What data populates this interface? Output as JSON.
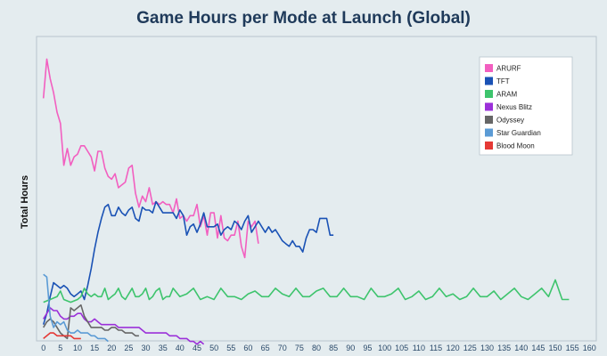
{
  "chart_data": {
    "type": "line",
    "title": "Game Hours per Mode at Launch (Global)",
    "xlabel": "",
    "ylabel": "Total Hours",
    "xlim": [
      -2,
      162
    ],
    "ylim": [
      0,
      100
    ],
    "xticks": [
      0,
      5,
      10,
      15,
      20,
      25,
      30,
      35,
      40,
      45,
      50,
      55,
      60,
      65,
      70,
      75,
      80,
      85,
      90,
      95,
      100,
      105,
      110,
      115,
      120,
      125,
      130,
      135,
      140,
      145,
      150,
      155,
      160
    ],
    "yticks_visible": false,
    "grid": false,
    "legend": "top-right",
    "series": [
      {
        "name": "ARURF",
        "color": "#f25fc0",
        "x": [
          0,
          1,
          2,
          3,
          4,
          5,
          6,
          7,
          8,
          9,
          10,
          11,
          12,
          13,
          14,
          15,
          16,
          17,
          18,
          19,
          20,
          21,
          22,
          23,
          24,
          25,
          26,
          27,
          28,
          29,
          30,
          31,
          32,
          33,
          34,
          35,
          36,
          37,
          38,
          39,
          40,
          41,
          42,
          43,
          44,
          45,
          46,
          47,
          48,
          49,
          50,
          51,
          52,
          53,
          54,
          55,
          56,
          57,
          58,
          59,
          60,
          61,
          62,
          63
        ],
        "y": [
          83,
          97,
          90,
          85,
          78,
          74,
          59,
          65,
          59,
          62,
          63,
          66,
          66,
          64,
          62,
          57,
          64,
          64,
          58,
          55,
          54,
          56,
          51,
          52,
          53,
          58,
          59,
          49,
          44,
          48,
          46,
          51,
          45,
          46,
          45,
          46,
          45,
          45,
          42,
          47,
          40,
          41,
          39,
          41,
          41,
          45,
          37,
          41,
          34,
          42,
          42,
          33,
          41,
          33,
          32,
          34,
          34,
          39,
          30,
          26,
          39,
          37,
          39,
          31
        ]
      },
      {
        "name": "TFT",
        "color": "#1a52b5",
        "x": [
          0,
          1,
          2,
          3,
          4,
          5,
          6,
          7,
          8,
          9,
          10,
          11,
          12,
          13,
          14,
          15,
          16,
          17,
          18,
          19,
          20,
          21,
          22,
          23,
          24,
          25,
          26,
          27,
          28,
          29,
          30,
          31,
          32,
          33,
          34,
          35,
          36,
          37,
          38,
          39,
          40,
          41,
          42,
          43,
          44,
          45,
          46,
          47,
          48,
          49,
          50,
          51,
          52,
          53,
          54,
          55,
          56,
          57,
          58,
          59,
          60,
          61,
          62,
          63,
          64,
          65,
          66,
          67,
          68,
          69,
          70,
          71,
          72,
          73,
          74,
          75,
          76,
          77,
          78,
          79,
          80,
          81,
          82,
          83,
          84,
          85
        ],
        "y": [
          2,
          6,
          12,
          17,
          16,
          15,
          16,
          15,
          13,
          12,
          13,
          14,
          11,
          16,
          22,
          29,
          35,
          40,
          44,
          45,
          41,
          41,
          44,
          42,
          41,
          43,
          44,
          40,
          39,
          44,
          43,
          43,
          42,
          46,
          44,
          42,
          42,
          42,
          42,
          40,
          43,
          41,
          34,
          37,
          38,
          35,
          38,
          42,
          37,
          37,
          37,
          38,
          34,
          36,
          37,
          36,
          39,
          38,
          36,
          39,
          41,
          35,
          37,
          39,
          37,
          35,
          37,
          35,
          36,
          34,
          32,
          31,
          30,
          32,
          30,
          30,
          28,
          33,
          36,
          36,
          35,
          40,
          40,
          40,
          34,
          34
        ]
      },
      {
        "name": "ARAM",
        "color": "#3ec46d",
        "x": [
          0,
          2,
          4,
          5,
          6,
          8,
          10,
          11,
          12,
          13,
          14,
          15,
          16,
          17,
          18,
          19,
          20,
          21,
          22,
          23,
          24,
          25,
          26,
          27,
          28,
          29,
          30,
          31,
          32,
          33,
          34,
          35,
          36,
          37,
          38,
          40,
          42,
          44,
          46,
          48,
          50,
          52,
          54,
          56,
          58,
          60,
          62,
          64,
          66,
          68,
          70,
          72,
          74,
          76,
          78,
          80,
          82,
          84,
          86,
          88,
          90,
          92,
          94,
          96,
          98,
          100,
          102,
          104,
          106,
          108,
          110,
          112,
          114,
          116,
          118,
          120,
          122,
          124,
          126,
          128,
          130,
          132,
          134,
          136,
          138,
          140,
          142,
          144,
          146,
          148,
          150,
          152,
          154
        ],
        "y": [
          10,
          11,
          12,
          14,
          11,
          10,
          11,
          12,
          15,
          13,
          12,
          13,
          12,
          12,
          15,
          11,
          12,
          13,
          15,
          12,
          11,
          13,
          15,
          12,
          12,
          13,
          15,
          11,
          12,
          14,
          15,
          11,
          12,
          12,
          15,
          12,
          13,
          15,
          11,
          12,
          11,
          15,
          12,
          12,
          11,
          13,
          14,
          12,
          12,
          15,
          13,
          12,
          15,
          12,
          12,
          14,
          15,
          12,
          12,
          15,
          12,
          12,
          11,
          15,
          12,
          12,
          13,
          15,
          11,
          12,
          14,
          11,
          12,
          15,
          12,
          13,
          11,
          12,
          15,
          12,
          12,
          14,
          11,
          13,
          15,
          12,
          11,
          13,
          15,
          12,
          18,
          11,
          11
        ]
      },
      {
        "name": "Nexus Blitz",
        "color": "#9b30d9",
        "x": [
          0,
          1,
          2,
          3,
          4,
          5,
          6,
          7,
          8,
          9,
          10,
          11,
          12,
          13,
          14,
          15,
          16,
          17,
          18,
          19,
          20,
          21,
          22,
          23,
          24,
          25,
          26,
          27,
          28,
          29,
          30,
          31,
          32,
          33,
          34,
          35,
          36,
          37,
          38,
          39,
          40,
          41,
          42,
          43,
          44,
          45,
          46,
          47
        ],
        "y": [
          4,
          6,
          8,
          7,
          7,
          5,
          4,
          4,
          5,
          5,
          6,
          6,
          4,
          3,
          3,
          4,
          3,
          2,
          2,
          2,
          2,
          2,
          1,
          1,
          1,
          1,
          1,
          1,
          1,
          0,
          -1,
          -1,
          -1,
          -1,
          -1,
          -1,
          -1,
          -2,
          -2,
          -2,
          -3,
          -3,
          -3,
          -4,
          -4,
          -5,
          -4,
          -5
        ]
      },
      {
        "name": "Odyssey",
        "color": "#666666",
        "x": [
          0,
          1,
          2,
          3,
          4,
          5,
          6,
          7,
          8,
          9,
          10,
          11,
          12,
          13,
          14,
          15,
          16,
          17,
          18,
          19,
          20,
          21,
          22,
          23,
          24,
          25,
          26,
          27,
          28
        ],
        "y": [
          1,
          3,
          4,
          3,
          1,
          -1,
          -2,
          -3,
          8,
          7,
          8,
          9,
          5,
          3,
          1,
          1,
          1,
          1,
          0,
          0,
          1,
          1,
          0,
          0,
          -1,
          -1,
          -1,
          -2,
          -2
        ]
      },
      {
        "name": "Star Guardian",
        "color": "#5b9bd5",
        "x": [
          0,
          1,
          2,
          3,
          4,
          5,
          6,
          7,
          8,
          9,
          10,
          11,
          12,
          13,
          14,
          15,
          16,
          17,
          18,
          19
        ],
        "y": [
          20,
          19,
          5,
          1,
          3,
          2,
          3,
          0,
          -1,
          -1,
          0,
          -1,
          -1,
          -1,
          -2,
          -2,
          -3,
          -3,
          -3,
          -4
        ]
      },
      {
        "name": "Blood Moon",
        "color": "#e53935",
        "x": [
          0,
          1,
          2,
          3,
          4,
          5,
          6,
          7,
          8,
          9,
          10,
          11
        ],
        "y": [
          -3,
          -2,
          -1,
          -1,
          -2,
          -2,
          -2,
          -2,
          -2,
          -3,
          -3,
          -3
        ]
      }
    ]
  }
}
